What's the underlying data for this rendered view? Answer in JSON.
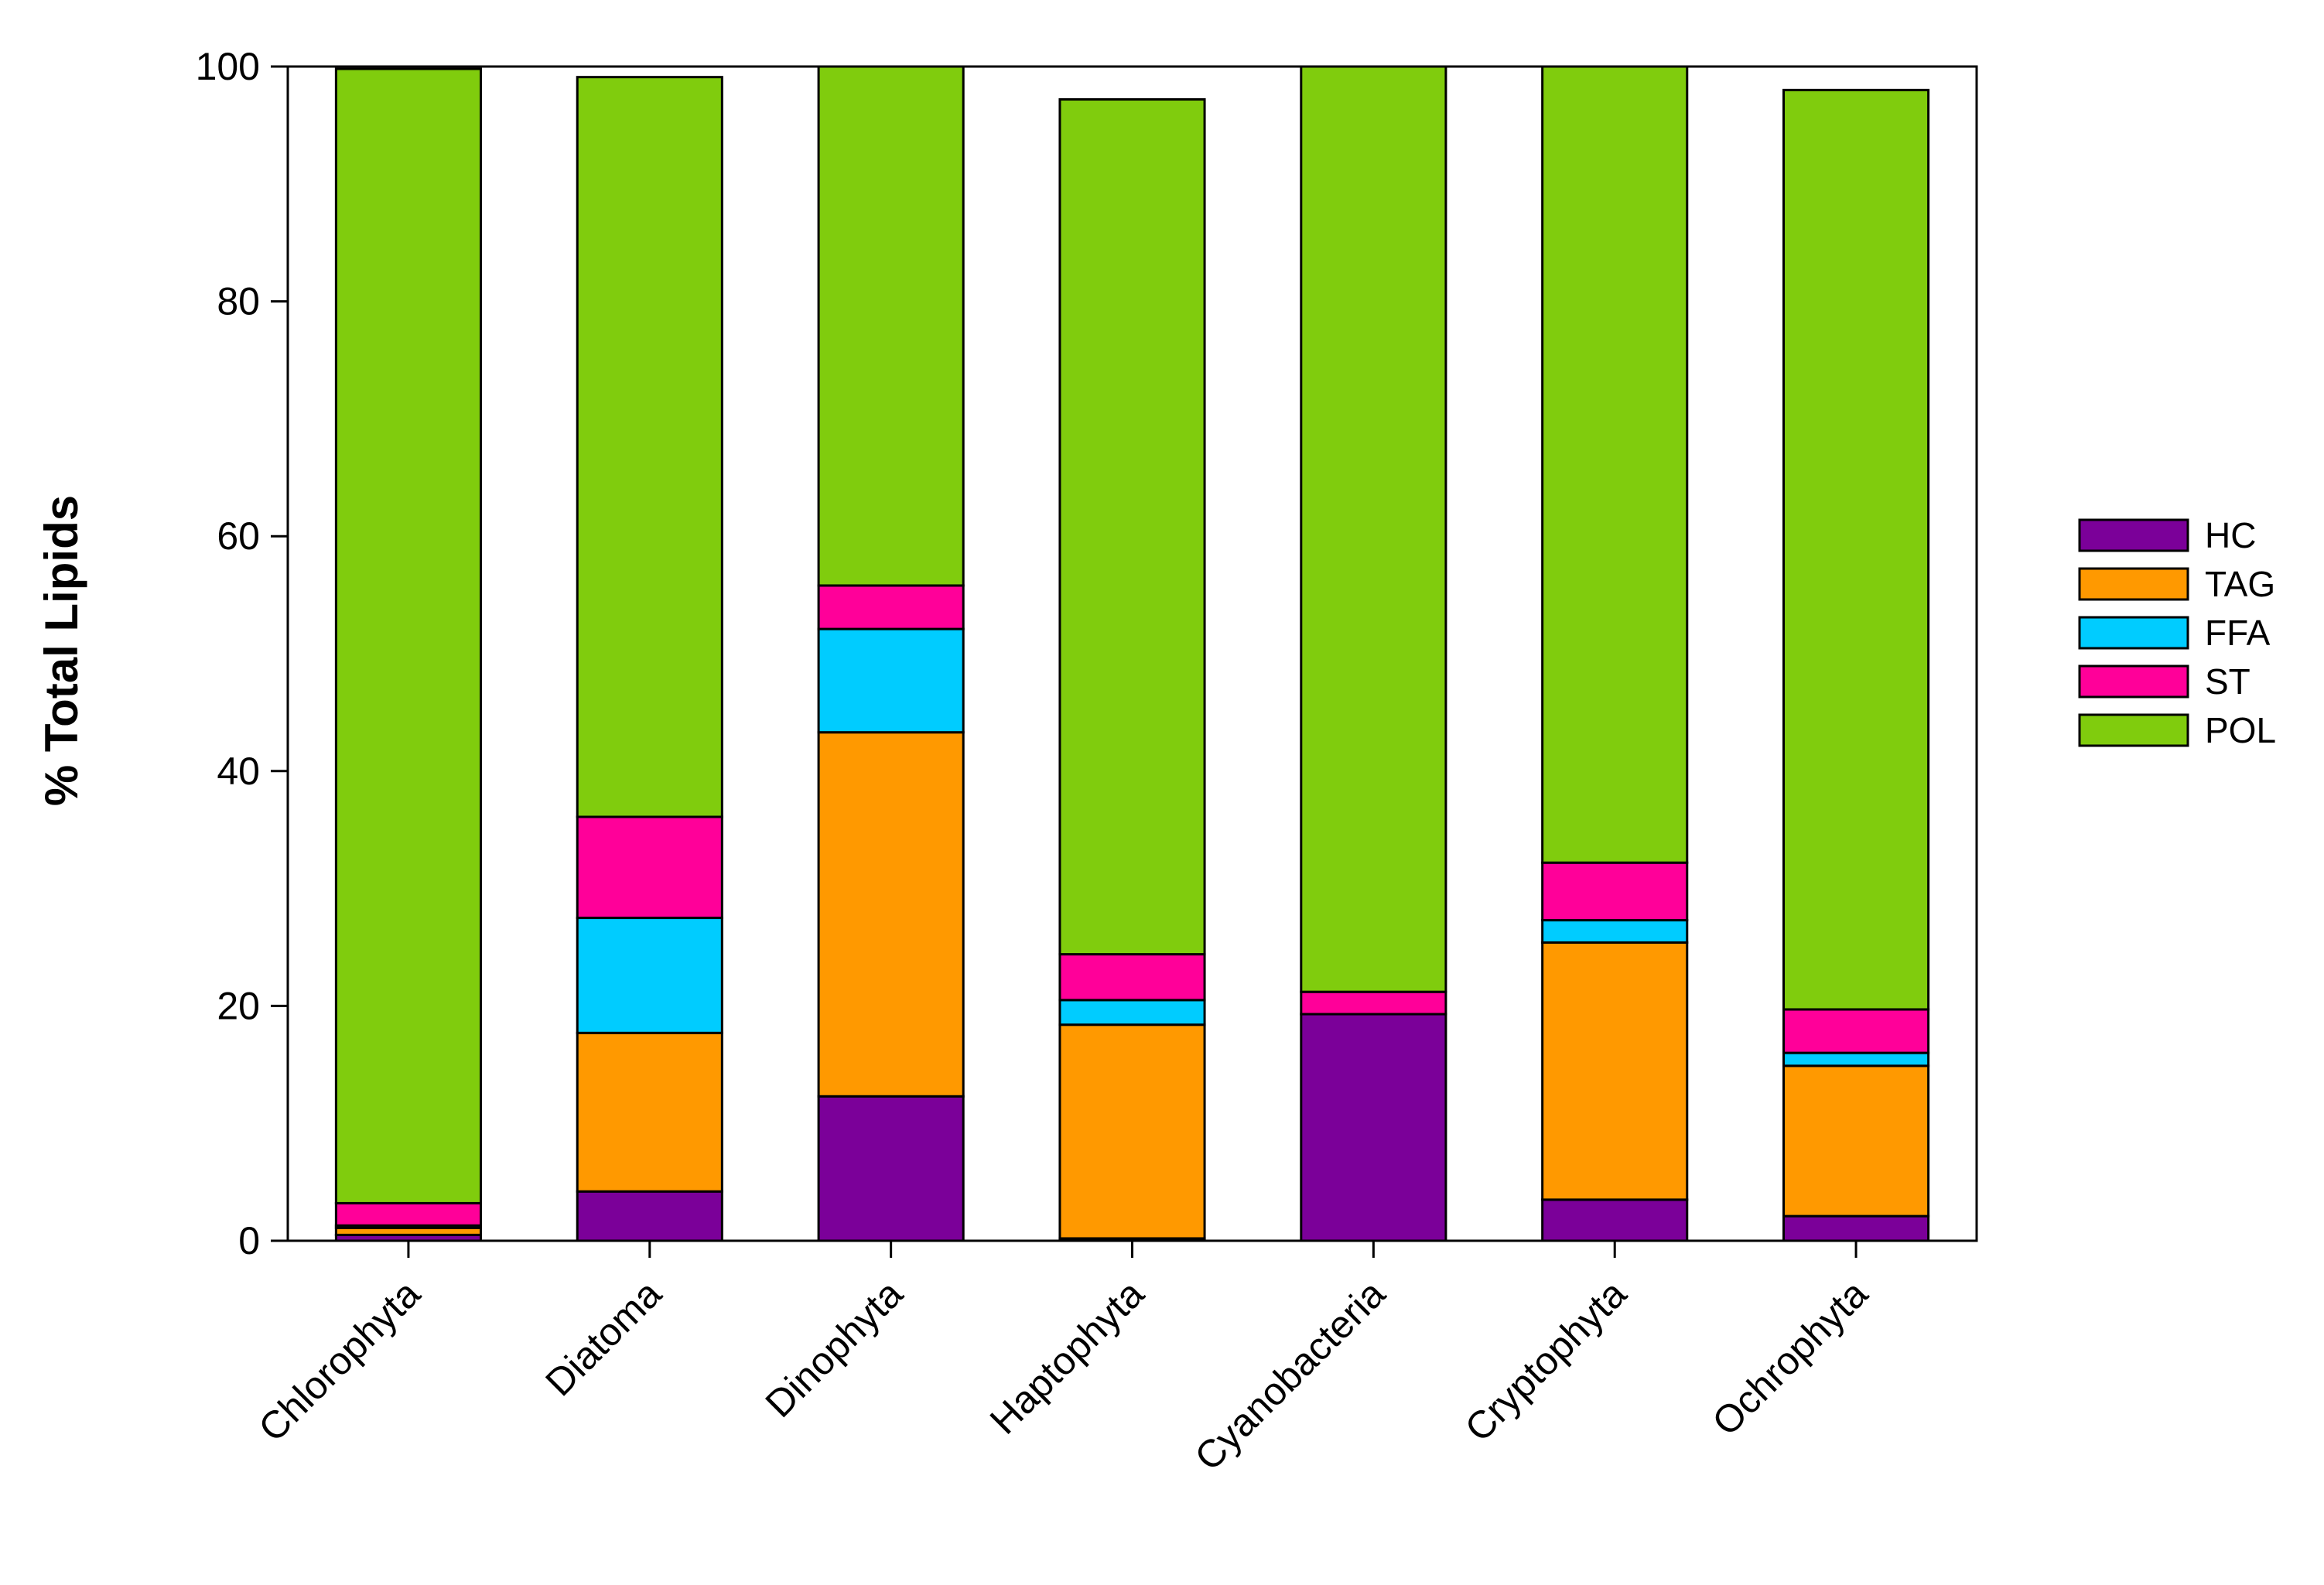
{
  "chart_data": {
    "type": "bar",
    "stacked": true,
    "ylabel": "% Total Lipids",
    "xlabel": "",
    "ylim": [
      0,
      100
    ],
    "yticks": [
      0,
      20,
      40,
      60,
      80,
      100
    ],
    "categories": [
      "Chlorophyta",
      "Diatoma",
      "Dinophyta",
      "Haptophyta",
      "Cyanobacteria",
      "Cryptophyta",
      "Ochrophyta"
    ],
    "series": [
      {
        "name": "HC",
        "color": "#7b0099",
        "values": [
          0.5,
          4.2,
          12.3,
          0.2,
          19.3,
          3.5,
          2.1
        ]
      },
      {
        "name": "TAG",
        "color": "#ff9900",
        "values": [
          0.6,
          13.5,
          31.0,
          18.2,
          0.0,
          21.9,
          12.8
        ]
      },
      {
        "name": "FFA",
        "color": "#00ccff",
        "values": [
          0.2,
          9.8,
          8.8,
          2.1,
          0.0,
          1.9,
          1.1
        ]
      },
      {
        "name": "ST",
        "color": "#ff0099",
        "values": [
          1.9,
          8.6,
          3.7,
          3.9,
          1.9,
          4.9,
          3.7
        ]
      },
      {
        "name": "POL",
        "color": "#80cc0d",
        "values": [
          96.6,
          63.0,
          44.2,
          72.8,
          78.8,
          67.8,
          78.3
        ]
      }
    ],
    "legend_position": "right",
    "grid": false
  }
}
